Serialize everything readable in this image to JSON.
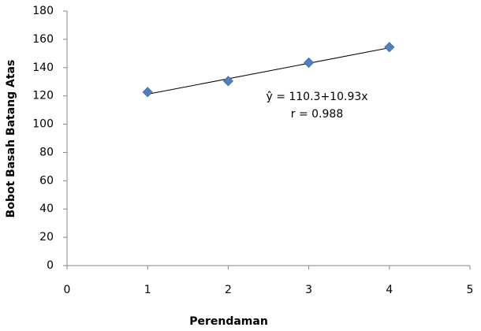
{
  "chart_data": {
    "type": "scatter",
    "xlabel": "Perendaman",
    "ylabel": "Bobot Basah Batang Atas",
    "x": [
      1,
      2,
      3,
      4
    ],
    "series": [
      {
        "color": "#4f81bd",
        "values": [
          122.7,
          130.5,
          143.5,
          154.5
        ]
      }
    ],
    "trendline": {
      "x": [
        1,
        4
      ],
      "values": [
        121.2,
        154.0
      ],
      "color": "#000000"
    },
    "annotations": [
      "ŷ = 110.3+10.93x",
      "r = 0.988"
    ],
    "xlim": [
      0,
      5
    ],
    "xticks": [
      0,
      1,
      2,
      3,
      4,
      5
    ],
    "ylim": [
      0,
      180
    ],
    "yticks": [
      0,
      20,
      40,
      60,
      80,
      100,
      120,
      140,
      160,
      180
    ],
    "grid": false
  }
}
